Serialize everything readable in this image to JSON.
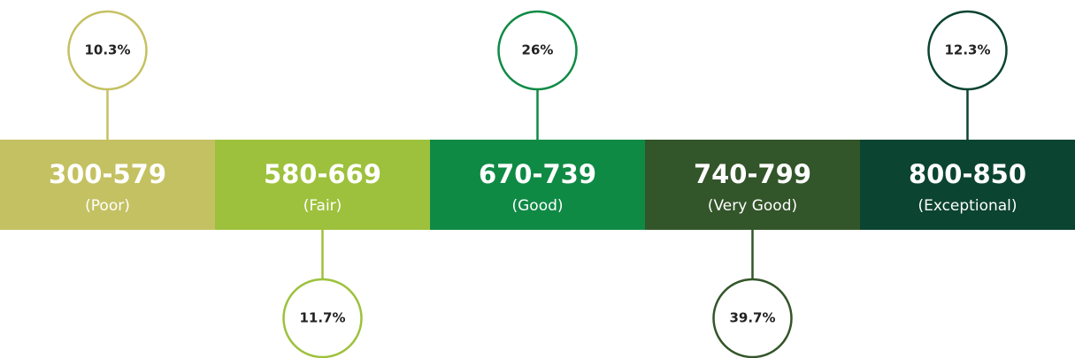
{
  "segments": [
    {
      "range": "300-579",
      "label": "(Poor)",
      "share": "10.3%",
      "color": "#c4c162"
    },
    {
      "range": "580-669",
      "label": "(Fair)",
      "share": "11.7%",
      "color": "#9dc13c"
    },
    {
      "range": "670-739",
      "label": "(Good)",
      "share": "26%",
      "color": "#0f8a45"
    },
    {
      "range": "740-799",
      "label": "(Very Good)",
      "share": "39.7%",
      "color": "#33552a"
    },
    {
      "range": "800-850",
      "label": "(Exceptional)",
      "share": "12.3%",
      "color": "#0b4430"
    }
  ]
}
